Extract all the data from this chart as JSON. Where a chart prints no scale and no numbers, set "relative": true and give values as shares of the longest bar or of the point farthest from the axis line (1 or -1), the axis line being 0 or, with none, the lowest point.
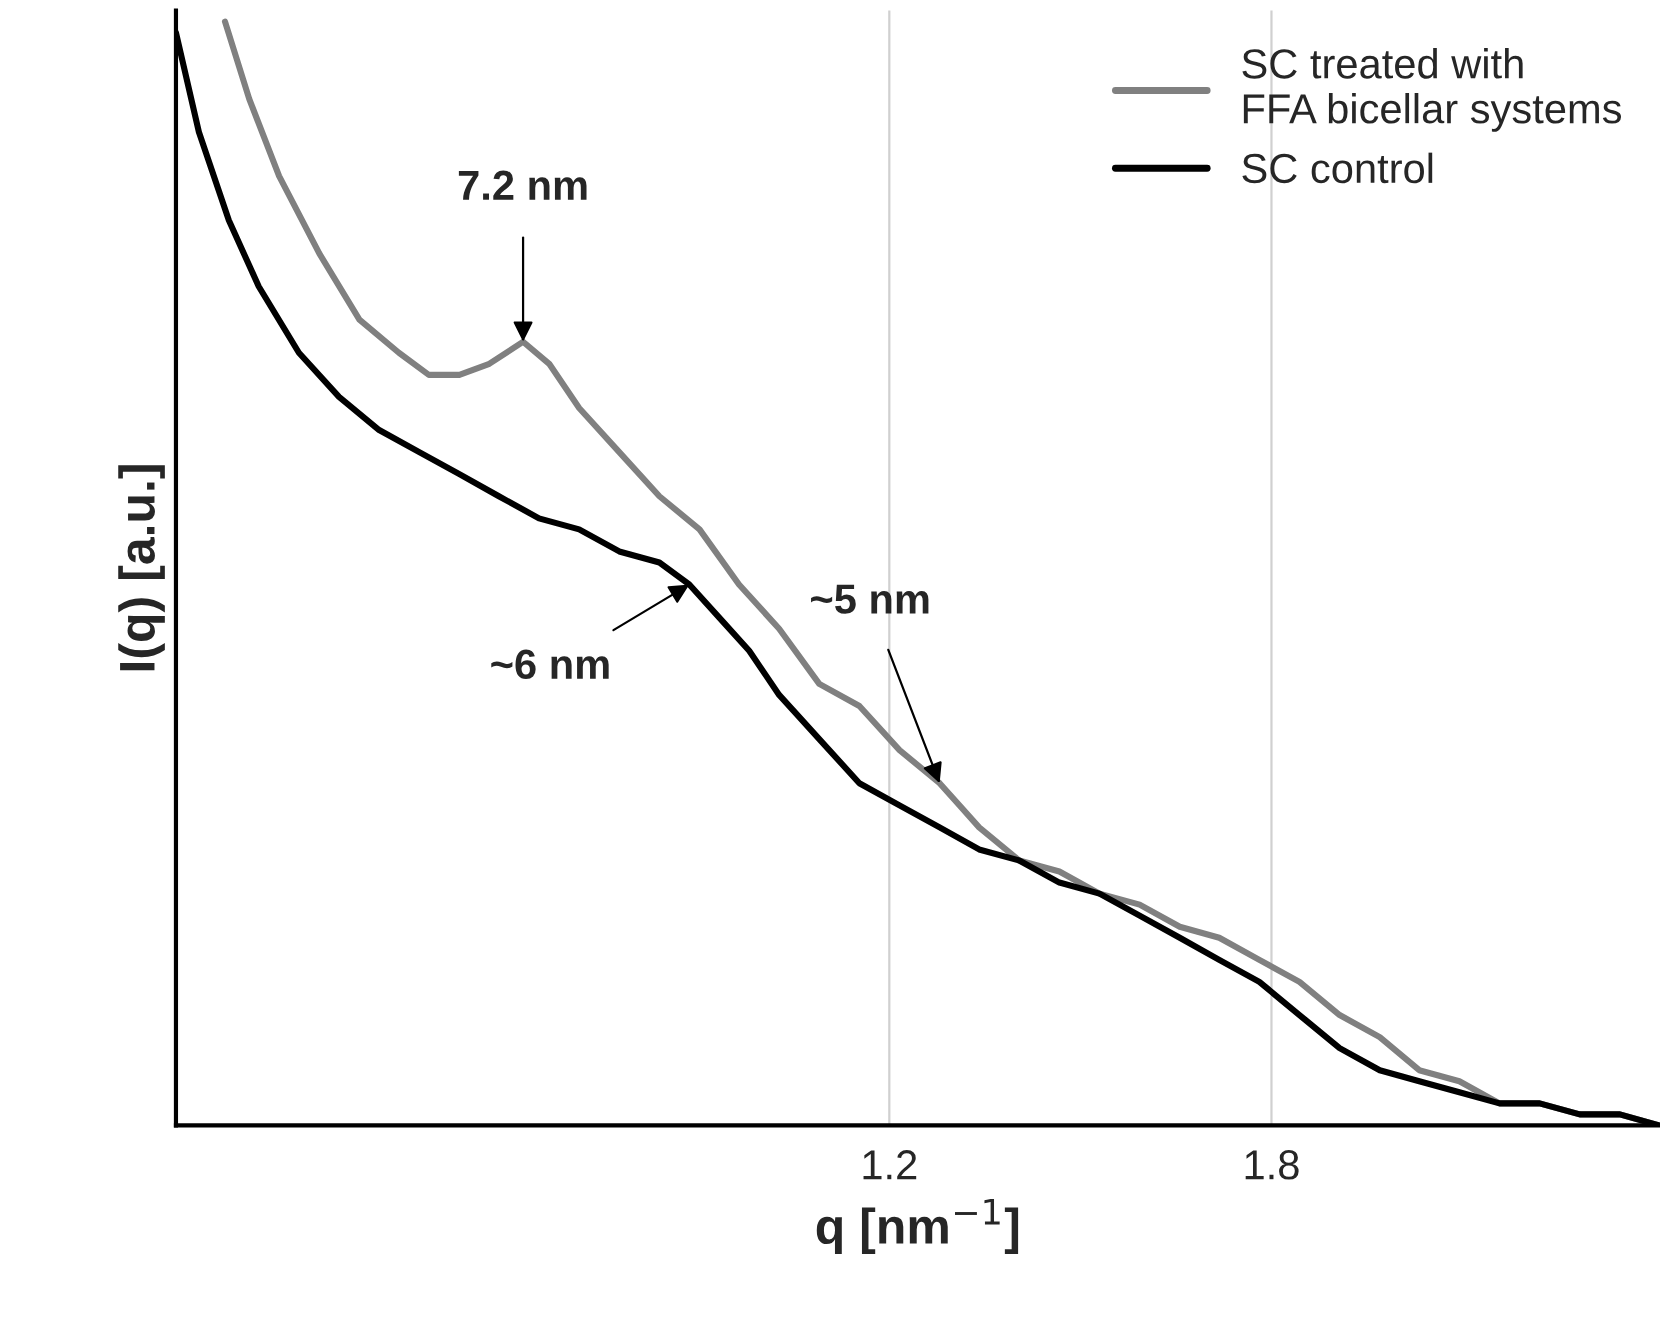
{
  "chart_data": {
    "type": "line",
    "xlabel": "q [nm$^{−1}$]",
    "ylabel": "I(q) [a.u.]",
    "relative": true,
    "xlim": [
      0.08,
      2.41
    ],
    "xticks": [
      1.2,
      1.8
    ],
    "grid": "x",
    "legend": "top right",
    "marker": "none",
    "line_style": "solid",
    "series": [
      {
        "name": "SC treated with\nFFA bicellar systems",
        "color": "#808080",
        "x": [
          0.157,
          0.195,
          0.242,
          0.305,
          0.368,
          0.43,
          0.477,
          0.525,
          0.572,
          0.625,
          0.666,
          0.713,
          0.776,
          0.839,
          0.902,
          0.964,
          1.027,
          1.09,
          1.153,
          1.216,
          1.279,
          1.31,
          1.341,
          1.404,
          1.467,
          1.53,
          1.593,
          1.656,
          1.718,
          1.781,
          1.844,
          1.907,
          1.97,
          2.032,
          2.095,
          2.158,
          2.221,
          2.284,
          2.347,
          2.409
        ],
        "values": [
          1.0,
          0.93,
          0.86,
          0.79,
          0.73,
          0.7,
          0.68,
          0.68,
          0.69,
          0.71,
          0.69,
          0.65,
          0.61,
          0.57,
          0.54,
          0.49,
          0.45,
          0.4,
          0.38,
          0.34,
          0.31,
          0.29,
          0.27,
          0.24,
          0.23,
          0.21,
          0.2,
          0.18,
          0.17,
          0.15,
          0.13,
          0.1,
          0.08,
          0.05,
          0.04,
          0.02,
          0.02,
          0.01,
          0.01,
          0.0
        ]
      },
      {
        "name": "SC control",
        "color": "#000000",
        "x": [
          0.08,
          0.116,
          0.163,
          0.21,
          0.273,
          0.336,
          0.399,
          0.462,
          0.525,
          0.587,
          0.65,
          0.713,
          0.776,
          0.839,
          0.886,
          0.933,
          0.98,
          1.027,
          1.09,
          1.153,
          1.216,
          1.279,
          1.341,
          1.404,
          1.467,
          1.53,
          1.593,
          1.656,
          1.718,
          1.781,
          1.844,
          1.907,
          1.97,
          2.032,
          2.095,
          2.158,
          2.221,
          2.284,
          2.347,
          2.409
        ],
        "values": [
          0.99,
          0.9,
          0.82,
          0.76,
          0.7,
          0.66,
          0.63,
          0.61,
          0.59,
          0.57,
          0.55,
          0.54,
          0.52,
          0.51,
          0.49,
          0.46,
          0.43,
          0.39,
          0.35,
          0.31,
          0.29,
          0.27,
          0.25,
          0.24,
          0.22,
          0.21,
          0.19,
          0.17,
          0.15,
          0.13,
          0.1,
          0.07,
          0.05,
          0.04,
          0.03,
          0.02,
          0.02,
          0.01,
          0.01,
          0.0
        ]
      }
    ],
    "annotations": [
      {
        "text": "7.2 nm",
        "x": 0.625,
        "y": 0.71
      },
      {
        "text": "~6 nm",
        "x": 0.886,
        "y": 0.49
      },
      {
        "text": "~5 nm",
        "x": 1.279,
        "y": 0.31
      }
    ]
  }
}
